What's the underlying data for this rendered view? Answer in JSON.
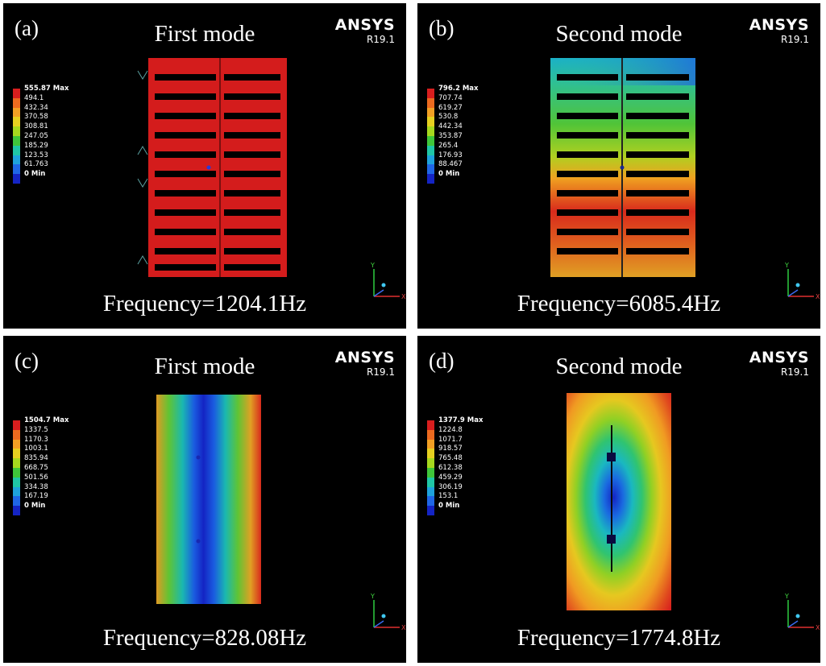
{
  "panels": [
    {
      "tag": "(a)",
      "title": "First mode",
      "brand": "ANSYS",
      "version": "R19.1",
      "frequency": "Frequency=1204.1Hz",
      "legend": [
        "555.87 Max",
        "494.1",
        "432.34",
        "370.58",
        "308.81",
        "247.05",
        "185.29",
        "123.53",
        "61.763",
        "0 Min"
      ]
    },
    {
      "tag": "(b)",
      "title": "Second mode",
      "brand": "ANSYS",
      "version": "R19.1",
      "frequency": "Frequency=6085.4Hz",
      "legend": [
        "796.2 Max",
        "707.74",
        "619.27",
        "530.8",
        "442.34",
        "353.87",
        "265.4",
        "176.93",
        "88.467",
        "0 Min"
      ]
    },
    {
      "tag": "(c)",
      "title": "First mode",
      "brand": "ANSYS",
      "version": "R19.1",
      "frequency": "Frequency=828.08Hz",
      "legend": [
        "1504.7 Max",
        "1337.5",
        "1170.3",
        "1003.1",
        "835.94",
        "668.75",
        "501.56",
        "334.38",
        "167.19",
        "0 Min"
      ]
    },
    {
      "tag": "(d)",
      "title": "Second mode",
      "brand": "ANSYS",
      "version": "R19.1",
      "frequency": "Frequency=1774.8Hz",
      "legend": [
        "1377.9 Max",
        "1224.8",
        "1071.7",
        "918.57",
        "765.48",
        "612.38",
        "459.29",
        "306.19",
        "153.1",
        "0 Min"
      ]
    }
  ],
  "colors": {
    "scale": [
      "#d81e1e",
      "#ec6a1f",
      "#f2a024",
      "#e6d020",
      "#a6d81e",
      "#3fc63a",
      "#1fc6a6",
      "#1ea2dc",
      "#1f66e6",
      "#1424c4"
    ],
    "background": "#000000",
    "page": "#ffffff"
  }
}
